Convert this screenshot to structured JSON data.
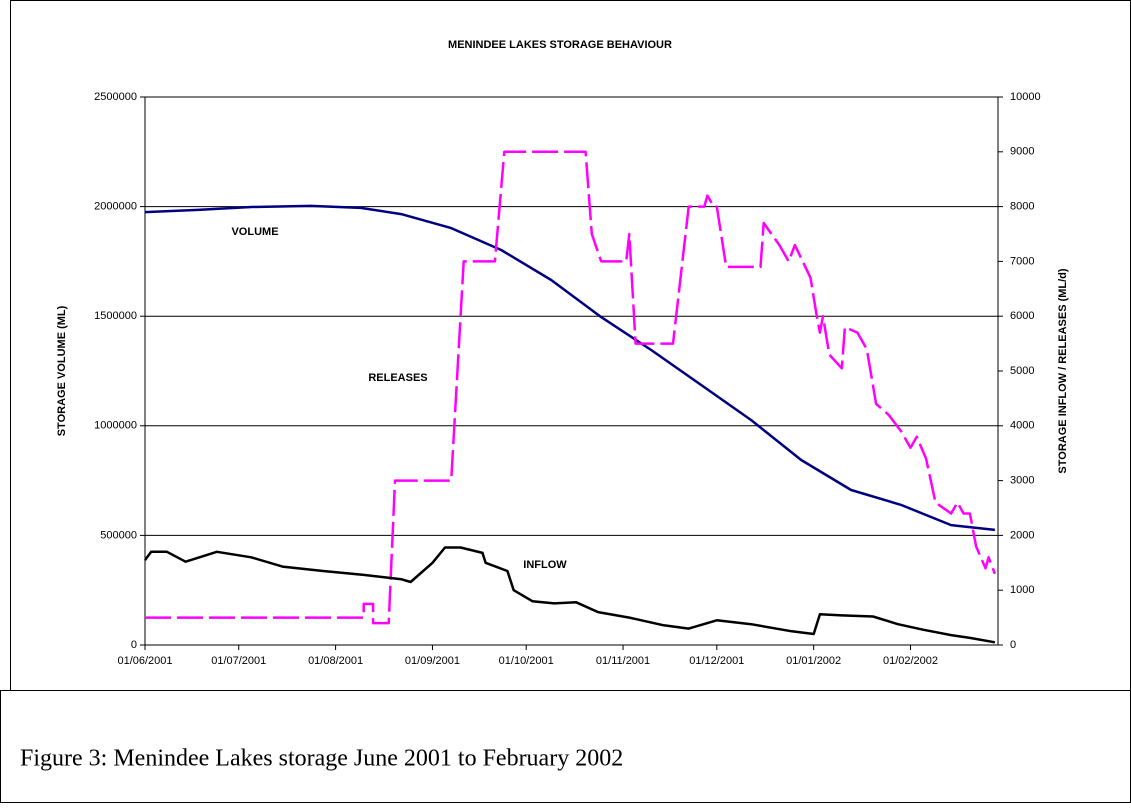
{
  "chart_data": {
    "type": "line",
    "title": "MENINDEE LAKES STORAGE BEHAVIOUR",
    "y_label": "STORAGE VOLUME (ML)",
    "y2_label": "STORAGE INFLOW / RELEASES (ML/d)",
    "annotations": [
      "VOLUME",
      "RELEASES",
      "INFLOW"
    ],
    "xlim": [
      "2001-06-01",
      "2002-03-01"
    ],
    "xticks": [
      {
        "value": "2001-06-01",
        "label": "01/06/2001"
      },
      {
        "value": "2001-07-01",
        "label": "01/07/2001"
      },
      {
        "value": "2001-08-01",
        "label": "01/08/2001"
      },
      {
        "value": "2001-09-01",
        "label": "01/09/2001"
      },
      {
        "value": "2001-10-01",
        "label": "01/10/2001"
      },
      {
        "value": "2001-11-01",
        "label": "01/11/2001"
      },
      {
        "value": "2001-12-01",
        "label": "01/12/2001"
      },
      {
        "value": "2002-01-01",
        "label": "01/01/2002"
      },
      {
        "value": "2002-02-01",
        "label": "01/02/2002"
      }
    ],
    "ylim": [
      0,
      2500000
    ],
    "yticks": [
      0,
      500000,
      1000000,
      1500000,
      2000000,
      2500000
    ],
    "y2lim": [
      0,
      10000
    ],
    "y2ticks": [
      0,
      1000,
      2000,
      3000,
      4000,
      5000,
      6000,
      7000,
      8000,
      9000,
      10000
    ],
    "grid": true,
    "series": [
      {
        "name": "VOLUME",
        "color": "#000080",
        "axis": "y",
        "x": [
          "2001-06-01",
          "2001-06-18",
          "2001-07-05",
          "2001-07-24",
          "2001-08-09",
          "2001-08-22",
          "2001-09-07",
          "2001-09-23",
          "2001-10-09",
          "2001-10-25",
          "2001-11-10",
          "2001-11-26",
          "2001-12-12",
          "2001-12-28",
          "2002-01-13",
          "2002-01-29",
          "2002-02-14",
          "2002-02-28"
        ],
        "values": [
          1975000,
          1985000,
          1998000,
          2003000,
          1994000,
          1966000,
          1902000,
          1802000,
          1665000,
          1496000,
          1346000,
          1186000,
          1026000,
          844000,
          707000,
          639000,
          547000,
          525000
        ]
      },
      {
        "name": "RELEASES",
        "color": "#ff00ff",
        "axis": "y2",
        "dashed": true,
        "x": [
          "2001-06-01",
          "2001-08-10",
          "2001-08-10",
          "2001-08-13",
          "2001-08-13",
          "2001-08-18",
          "2001-08-20",
          "2001-09-07",
          "2001-09-11",
          "2001-09-21",
          "2001-09-24",
          "2001-10-20",
          "2001-10-22",
          "2001-10-25",
          "2001-11-02",
          "2001-11-03",
          "2001-11-05",
          "2001-11-17",
          "2001-11-22",
          "2001-11-27",
          "2001-11-28",
          "2001-11-30",
          "2001-12-01",
          "2001-12-04",
          "2001-12-15",
          "2001-12-16",
          "2001-12-21",
          "2001-12-24",
          "2001-12-26",
          "2001-12-31",
          "2002-01-02",
          "2002-01-03",
          "2002-01-04",
          "2002-01-06",
          "2002-01-10",
          "2002-01-11",
          "2002-01-15",
          "2002-01-18",
          "2002-01-21",
          "2002-01-25",
          "2002-01-29",
          "2002-02-01",
          "2002-02-03",
          "2002-02-06",
          "2002-02-09",
          "2002-02-14",
          "2002-02-16",
          "2002-02-18",
          "2002-02-20",
          "2002-02-22",
          "2002-02-25",
          "2002-02-26",
          "2002-02-28"
        ],
        "values": [
          500,
          500,
          750,
          750,
          400,
          400,
          3000,
          3000,
          7000,
          7000,
          9000,
          9000,
          7500,
          7000,
          7000,
          7500,
          5500,
          5500,
          8000,
          8000,
          8200,
          8000,
          8000,
          6900,
          6900,
          7700,
          7300,
          7000,
          7300,
          6700,
          6000,
          5700,
          6000,
          5300,
          5050,
          5800,
          5700,
          5400,
          4400,
          4200,
          3900,
          3600,
          3800,
          3400,
          2600,
          2400,
          2600,
          2400,
          2400,
          1800,
          1400,
          1600,
          1300
        ]
      },
      {
        "name": "INFLOW",
        "color": "#000000",
        "axis": "y2",
        "x": [
          "2001-06-01",
          "2001-06-03",
          "2001-06-08",
          "2001-06-14",
          "2001-06-24",
          "2001-07-05",
          "2001-07-15",
          "2001-07-28",
          "2001-08-10",
          "2001-08-22",
          "2001-08-25",
          "2001-09-01",
          "2001-09-05",
          "2001-09-10",
          "2001-09-17",
          "2001-09-18",
          "2001-09-25",
          "2001-09-27",
          "2001-10-03",
          "2001-10-10",
          "2001-10-17",
          "2001-10-24",
          "2001-11-03",
          "2001-11-14",
          "2001-11-22",
          "2001-12-01",
          "2001-12-12",
          "2001-12-25",
          "2002-01-01",
          "2002-01-03",
          "2002-01-10",
          "2002-01-20",
          "2002-01-28",
          "2002-02-05",
          "2002-02-14",
          "2002-02-20",
          "2002-02-28"
        ],
        "values": [
          1550,
          1700,
          1700,
          1520,
          1700,
          1600,
          1430,
          1350,
          1280,
          1200,
          1150,
          1500,
          1780,
          1780,
          1680,
          1500,
          1350,
          1000,
          800,
          760,
          780,
          600,
          500,
          360,
          300,
          450,
          380,
          250,
          200,
          560,
          540,
          520,
          380,
          280,
          180,
          130,
          50
        ]
      }
    ]
  },
  "caption": "Figure 3: Menindee Lakes storage June 2001 to February 2002"
}
